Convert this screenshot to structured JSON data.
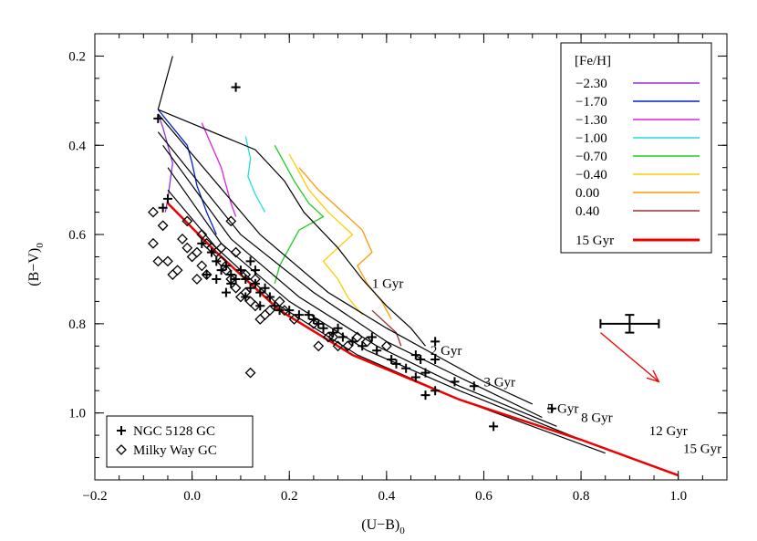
{
  "chart_data": {
    "type": "scatter",
    "xlabel": "(U−B)",
    "xlabel_sub": "0",
    "ylabel": "(B−V)",
    "ylabel_sub": "0",
    "xlim": [
      -0.2,
      1.1
    ],
    "ylim": [
      1.15,
      0.15
    ],
    "y_inverted": true,
    "x_ticks": [
      {
        "value": -0.2,
        "label": "−0.2"
      },
      {
        "value": 0.0,
        "label": "0.0"
      },
      {
        "value": 0.2,
        "label": "0.2"
      },
      {
        "value": 0.4,
        "label": "0.4"
      },
      {
        "value": 0.6,
        "label": "0.6"
      },
      {
        "value": 0.8,
        "label": "0.8"
      },
      {
        "value": 1.0,
        "label": "1.0"
      }
    ],
    "y_ticks": [
      {
        "value": 0.2,
        "label": "0.2"
      },
      {
        "value": 0.4,
        "label": "0.4"
      },
      {
        "value": 0.6,
        "label": "0.6"
      },
      {
        "value": 0.8,
        "label": "0.8"
      },
      {
        "value": 1.0,
        "label": "1.0"
      }
    ],
    "metallicity_legend": {
      "title": "[Fe/H]",
      "entries": [
        {
          "label": "−2.30",
          "color": "#9933cc"
        },
        {
          "label": "−1.70",
          "color": "#0022cc"
        },
        {
          "label": "−1.30",
          "color": "#dd22dd"
        },
        {
          "label": "−1.00",
          "color": "#22dddd"
        },
        {
          "label": "−0.70",
          "color": "#22cc22"
        },
        {
          "label": "−0.40",
          "color": "#ffcc00"
        },
        {
          "label": "0.00",
          "color": "#ff9900"
        },
        {
          "label": "0.40",
          "color": "#993333"
        }
      ],
      "age_entry": {
        "label": "15 Gyr",
        "color": "#ee0000"
      }
    },
    "marker_legend": [
      {
        "label": "NGC 5128 GC",
        "marker": "plus"
      },
      {
        "label": "Milky Way GC",
        "marker": "diamond"
      }
    ],
    "isochrone_tracks": [
      {
        "feh": "−2.30",
        "color": "#9933cc",
        "points": [
          [
            -0.07,
            0.33
          ],
          [
            -0.06,
            0.36
          ],
          [
            -0.05,
            0.4
          ],
          [
            -0.04,
            0.44
          ],
          [
            -0.045,
            0.48
          ],
          [
            -0.05,
            0.52
          ],
          [
            -0.055,
            0.55
          ]
        ]
      },
      {
        "feh": "−1.70",
        "color": "#0022cc",
        "points": [
          [
            -0.07,
            0.32
          ],
          [
            -0.04,
            0.36
          ],
          [
            -0.01,
            0.4
          ],
          [
            0.0,
            0.44
          ],
          [
            0.01,
            0.49
          ],
          [
            0.03,
            0.55
          ],
          [
            0.05,
            0.6
          ]
        ]
      },
      {
        "feh": "−1.30",
        "color": "#dd22dd",
        "points": [
          [
            0.02,
            0.35
          ],
          [
            0.04,
            0.4
          ],
          [
            0.06,
            0.45
          ],
          [
            0.07,
            0.49
          ],
          [
            0.08,
            0.53
          ],
          [
            0.09,
            0.56
          ]
        ]
      },
      {
        "feh": "−1.00",
        "color": "#22dddd",
        "points": [
          [
            0.11,
            0.38
          ],
          [
            0.12,
            0.43
          ],
          [
            0.115,
            0.47
          ],
          [
            0.13,
            0.51
          ],
          [
            0.15,
            0.55
          ]
        ]
      },
      {
        "feh": "−0.70",
        "color": "#22cc22",
        "points": [
          [
            0.17,
            0.4
          ],
          [
            0.19,
            0.44
          ],
          [
            0.21,
            0.48
          ],
          [
            0.24,
            0.53
          ],
          [
            0.27,
            0.56
          ],
          [
            0.22,
            0.59
          ],
          [
            0.2,
            0.63
          ],
          [
            0.18,
            0.67
          ],
          [
            0.17,
            0.71
          ]
        ]
      },
      {
        "feh": "−0.40",
        "color": "#ffcc00",
        "points": [
          [
            0.2,
            0.42
          ],
          [
            0.22,
            0.46
          ],
          [
            0.24,
            0.5
          ],
          [
            0.28,
            0.55
          ],
          [
            0.33,
            0.6
          ],
          [
            0.3,
            0.63
          ],
          [
            0.27,
            0.66
          ],
          [
            0.3,
            0.7
          ],
          [
            0.32,
            0.74
          ],
          [
            0.35,
            0.78
          ]
        ]
      },
      {
        "feh": "0.00",
        "color": "#ff9900",
        "points": [
          [
            0.22,
            0.45
          ],
          [
            0.26,
            0.5
          ],
          [
            0.31,
            0.55
          ],
          [
            0.35,
            0.59
          ],
          [
            0.37,
            0.64
          ],
          [
            0.34,
            0.67
          ],
          [
            0.36,
            0.71
          ],
          [
            0.39,
            0.75
          ],
          [
            0.41,
            0.79
          ]
        ]
      },
      {
        "feh": "0.40",
        "color": "#993333",
        "points": [
          [
            0.37,
            0.77
          ],
          [
            0.4,
            0.8
          ],
          [
            0.42,
            0.82
          ],
          [
            0.43,
            0.85
          ]
        ]
      }
    ],
    "age_lines": [
      {
        "label": "1 Gyr",
        "label_at": [
          0.37,
          0.72
        ],
        "points": [
          [
            -0.07,
            0.32
          ],
          [
            0.13,
            0.41
          ],
          [
            0.19,
            0.48
          ],
          [
            0.23,
            0.55
          ],
          [
            0.3,
            0.63
          ],
          [
            0.35,
            0.7
          ],
          [
            0.4,
            0.76
          ],
          [
            0.45,
            0.81
          ],
          [
            0.48,
            0.85
          ]
        ]
      },
      {
        "label": "2 Gyr",
        "label_at": [
          0.49,
          0.87
        ],
        "points": [
          [
            -0.07,
            0.33
          ],
          [
            0.14,
            0.6
          ],
          [
            0.28,
            0.73
          ],
          [
            0.4,
            0.81
          ],
          [
            0.5,
            0.87
          ],
          [
            0.6,
            0.93
          ],
          [
            0.7,
            0.98
          ]
        ]
      },
      {
        "label": "3 Gyr",
        "label_at": [
          0.6,
          0.94
        ],
        "points": [
          [
            -0.07,
            0.37
          ],
          [
            0.1,
            0.6
          ],
          [
            0.25,
            0.73
          ],
          [
            0.4,
            0.84
          ],
          [
            0.55,
            0.92
          ],
          [
            0.72,
            1.01
          ]
        ]
      },
      {
        "label": "5 Gyr",
        "label_at": [
          0.73,
          1.0
        ],
        "points": [
          [
            -0.06,
            0.4
          ],
          [
            0.08,
            0.61
          ],
          [
            0.22,
            0.74
          ],
          [
            0.38,
            0.85
          ],
          [
            0.55,
            0.94
          ],
          [
            0.75,
            1.03
          ]
        ]
      },
      {
        "label": "8 Gyr",
        "label_at": [
          0.8,
          1.02
        ],
        "points": [
          [
            -0.05,
            0.45
          ],
          [
            0.06,
            0.62
          ],
          [
            0.2,
            0.75
          ],
          [
            0.36,
            0.86
          ],
          [
            0.55,
            0.95
          ],
          [
            0.8,
            1.06
          ]
        ]
      },
      {
        "label": "12 Gyr",
        "label_at": [
          0.94,
          1.05
        ],
        "points": [
          [
            -0.05,
            0.5
          ],
          [
            0.05,
            0.63
          ],
          [
            0.18,
            0.76
          ],
          [
            0.34,
            0.87
          ],
          [
            0.55,
            0.97
          ],
          [
            0.85,
            1.09
          ]
        ]
      },
      {
        "label": "15 Gyr",
        "label_at": [
          1.01,
          1.09
        ],
        "color": "#ee0000",
        "points": [
          [
            -0.05,
            0.53
          ],
          [
            0.05,
            0.64
          ],
          [
            0.18,
            0.77
          ],
          [
            0.33,
            0.87
          ],
          [
            0.55,
            0.97
          ],
          [
            0.8,
            1.06
          ],
          [
            1.0,
            1.14
          ]
        ]
      }
    ],
    "ngc5128_gc": [
      [
        0.09,
        0.27
      ],
      [
        -0.07,
        0.34
      ],
      [
        -0.05,
        0.52
      ],
      [
        -0.06,
        0.54
      ],
      [
        0.02,
        0.62
      ],
      [
        0.04,
        0.64
      ],
      [
        0.05,
        0.66
      ],
      [
        0.06,
        0.68
      ],
      [
        0.07,
        0.67
      ],
      [
        0.08,
        0.69
      ],
      [
        0.09,
        0.7
      ],
      [
        0.1,
        0.68
      ],
      [
        0.11,
        0.7
      ],
      [
        0.12,
        0.72
      ],
      [
        0.13,
        0.71
      ],
      [
        0.14,
        0.73
      ],
      [
        0.15,
        0.72
      ],
      [
        0.16,
        0.74
      ],
      [
        0.17,
        0.76
      ],
      [
        0.18,
        0.77
      ],
      [
        0.2,
        0.77
      ],
      [
        0.22,
        0.78
      ],
      [
        0.24,
        0.78
      ],
      [
        0.25,
        0.79
      ],
      [
        0.26,
        0.8
      ],
      [
        0.27,
        0.81
      ],
      [
        0.29,
        0.82
      ],
      [
        0.3,
        0.81
      ],
      [
        0.31,
        0.83
      ],
      [
        0.33,
        0.84
      ],
      [
        0.35,
        0.85
      ],
      [
        0.37,
        0.83
      ],
      [
        0.38,
        0.86
      ],
      [
        0.41,
        0.88
      ],
      [
        0.42,
        0.89
      ],
      [
        0.44,
        0.9
      ],
      [
        0.46,
        0.87
      ],
      [
        0.47,
        0.88
      ],
      [
        0.48,
        0.91
      ],
      [
        0.5,
        0.88
      ],
      [
        0.5,
        0.84
      ],
      [
        0.46,
        0.92
      ],
      [
        0.48,
        0.96
      ],
      [
        0.5,
        0.95
      ],
      [
        0.54,
        0.93
      ],
      [
        0.58,
        0.94
      ],
      [
        0.62,
        1.03
      ],
      [
        0.74,
        0.99
      ],
      [
        0.07,
        0.73
      ],
      [
        0.12,
        0.66
      ],
      [
        0.13,
        0.68
      ],
      [
        0.08,
        0.71
      ],
      [
        0.11,
        0.74
      ],
      [
        0.14,
        0.76
      ],
      [
        0.03,
        0.69
      ],
      [
        0.05,
        0.7
      ]
    ],
    "milky_way_gc": [
      [
        -0.08,
        0.55
      ],
      [
        -0.06,
        0.58
      ],
      [
        -0.08,
        0.62
      ],
      [
        -0.07,
        0.66
      ],
      [
        -0.05,
        0.66
      ],
      [
        -0.04,
        0.69
      ],
      [
        -0.03,
        0.68
      ],
      [
        -0.02,
        0.61
      ],
      [
        -0.01,
        0.57
      ],
      [
        -0.01,
        0.63
      ],
      [
        0.0,
        0.65
      ],
      [
        0.01,
        0.7
      ],
      [
        0.02,
        0.67
      ],
      [
        0.03,
        0.69
      ],
      [
        0.04,
        0.63
      ],
      [
        0.05,
        0.64
      ],
      [
        0.06,
        0.66
      ],
      [
        0.07,
        0.68
      ],
      [
        0.08,
        0.7
      ],
      [
        0.09,
        0.72
      ],
      [
        0.1,
        0.74
      ],
      [
        0.11,
        0.73
      ],
      [
        0.12,
        0.75
      ],
      [
        0.13,
        0.76
      ],
      [
        0.14,
        0.79
      ],
      [
        0.15,
        0.78
      ],
      [
        0.16,
        0.77
      ],
      [
        0.19,
        0.77
      ],
      [
        0.21,
        0.79
      ],
      [
        0.25,
        0.8
      ],
      [
        0.26,
        0.85
      ],
      [
        0.28,
        0.83
      ],
      [
        0.29,
        0.83
      ],
      [
        0.3,
        0.85
      ],
      [
        0.32,
        0.85
      ],
      [
        0.34,
        0.83
      ],
      [
        0.36,
        0.84
      ],
      [
        0.4,
        0.85
      ],
      [
        0.03,
        0.62
      ],
      [
        0.06,
        0.63
      ],
      [
        0.09,
        0.64
      ],
      [
        0.11,
        0.69
      ],
      [
        0.13,
        0.7
      ],
      [
        0.01,
        0.64
      ],
      [
        0.02,
        0.6
      ],
      [
        0.12,
        0.91
      ],
      [
        0.08,
        0.57
      ],
      [
        0.18,
        0.75
      ]
    ],
    "error_bar": {
      "x": 0.9,
      "y": 0.8,
      "x_err": 0.06,
      "y_err": 0.02
    },
    "reddening_vector": {
      "from": [
        0.84,
        0.82
      ],
      "to": [
        0.96,
        0.93
      ],
      "color": "#ee0000"
    }
  }
}
